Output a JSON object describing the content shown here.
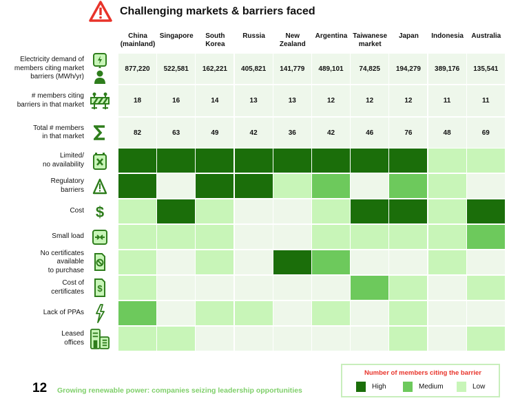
{
  "header": {
    "title": "Challenging markets & barriers faced",
    "icon": "warning-triangle-icon"
  },
  "colors": {
    "high": "#1b6e0a",
    "medium": "#6dc95c",
    "low": "#c8f5b8",
    "none": "#eef7ea",
    "stat_bg": "#eef7eb",
    "accent_red": "#e8332a"
  },
  "chart_data": {
    "type": "heatmap",
    "title": "Challenging markets & barriers faced",
    "columns": [
      "China (mainland)",
      "Singapore",
      "South Korea",
      "Russia",
      "New Zealand",
      "Argentina",
      "Taiwanese market",
      "Japan",
      "Indonesia",
      "Australia"
    ],
    "column_labels": [
      [
        "China",
        "(mainland)"
      ],
      [
        "Singapore"
      ],
      [
        "South",
        "Korea"
      ],
      [
        "Russia"
      ],
      [
        "New",
        "Zealand"
      ],
      [
        "Argentina"
      ],
      [
        "Taiwanese",
        "market"
      ],
      [
        "Japan"
      ],
      [
        "Indonesia"
      ],
      [
        "Australia"
      ]
    ],
    "stat_rows": [
      {
        "label": [
          "Electricity demand of",
          "members citing market",
          "barriers (MWh/yr)"
        ],
        "icon": "lightning-person-icon",
        "values": [
          "877,220",
          "522,581",
          "162,221",
          "405,821",
          "141,779",
          "489,101",
          "74,825",
          "194,279",
          "389,176",
          "135,541"
        ]
      },
      {
        "label": [
          "# members citing",
          "barriers in that market"
        ],
        "icon": "roadblock-icon",
        "values": [
          "18",
          "16",
          "14",
          "13",
          "13",
          "12",
          "12",
          "12",
          "11",
          "11"
        ]
      },
      {
        "label": [
          "Total # members",
          "in that market"
        ],
        "icon": "sigma-icon",
        "values": [
          "82",
          "63",
          "49",
          "42",
          "36",
          "42",
          "46",
          "76",
          "48",
          "69"
        ]
      }
    ],
    "level_scale": {
      "3": "High",
      "2": "Medium",
      "1": "Low",
      "0": "None"
    },
    "barrier_rows": [
      {
        "label": [
          "Limited/",
          "no availability"
        ],
        "icon": "calendar-x-icon",
        "levels": [
          3,
          3,
          3,
          3,
          3,
          3,
          3,
          3,
          1,
          1
        ]
      },
      {
        "label": [
          "Regulatory",
          "barriers"
        ],
        "icon": "warning-icon",
        "levels": [
          3,
          0,
          3,
          3,
          1,
          2,
          0,
          2,
          1,
          0
        ]
      },
      {
        "label": [
          "Cost"
        ],
        "icon": "dollar-icon",
        "levels": [
          1,
          3,
          1,
          0,
          0,
          1,
          3,
          3,
          1,
          3
        ]
      },
      {
        "label": [
          "Small load"
        ],
        "icon": "compress-arrows-icon",
        "levels": [
          1,
          1,
          1,
          0,
          0,
          1,
          1,
          1,
          1,
          2
        ]
      },
      {
        "label": [
          "No certificates",
          "available",
          "to purchase"
        ],
        "icon": "certificate-blocked-icon",
        "levels": [
          1,
          0,
          1,
          0,
          3,
          2,
          0,
          0,
          1,
          0
        ]
      },
      {
        "label": [
          "Cost of",
          "certificates"
        ],
        "icon": "certificate-dollar-icon",
        "levels": [
          1,
          0,
          0,
          0,
          0,
          0,
          2,
          1,
          0,
          1
        ]
      },
      {
        "label": [
          "Lack of PPAs"
        ],
        "icon": "lightning-icon",
        "levels": [
          2,
          0,
          1,
          1,
          0,
          1,
          0,
          1,
          0,
          0
        ]
      },
      {
        "label": [
          "Leased",
          "offices"
        ],
        "icon": "office-buildings-icon",
        "levels": [
          1,
          1,
          0,
          0,
          0,
          0,
          0,
          1,
          0,
          1
        ]
      }
    ]
  },
  "legend": {
    "title": "Number of members citing the barrier",
    "items": [
      {
        "label": "High",
        "level": 3
      },
      {
        "label": "Medium",
        "level": 2
      },
      {
        "label": "Low",
        "level": 1
      }
    ]
  },
  "footer": {
    "page_number": "12",
    "text": "Growing renewable power: companies seizing leadership opportunities"
  }
}
